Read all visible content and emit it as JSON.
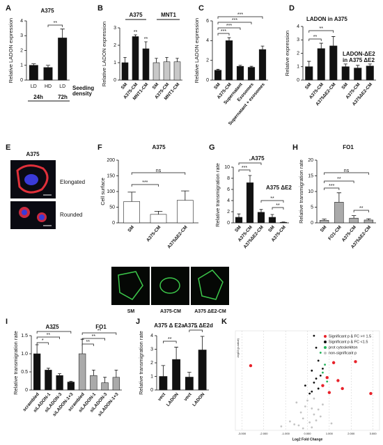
{
  "chart_data": [
    {
      "panel": "A",
      "type": "bar",
      "title": "A375",
      "ylabel": "Relative LADON expression",
      "categories": [
        "LD",
        "HD",
        "LD"
      ],
      "values": [
        1.0,
        0.85,
        2.85
      ],
      "errors": [
        0.1,
        0.15,
        0.6
      ],
      "colors": [
        "#111111",
        "#111111",
        "#111111"
      ],
      "ylim": [
        0,
        4
      ],
      "yticks": [
        0,
        1,
        2,
        3,
        4
      ],
      "annotations": [
        "**"
      ],
      "groups": [
        "24h",
        "72h",
        "Seeding",
        "density"
      ]
    },
    {
      "panel": "B",
      "type": "bar",
      "ylabel": "Relative LADON expression",
      "categories": [
        "SM",
        "A375-CM",
        "MNT1-CM",
        "SM",
        "A375-CM",
        "MNT1-CM"
      ],
      "values": [
        1.0,
        2.5,
        1.8,
        1.0,
        1.05,
        1.05
      ],
      "errors": [
        0.3,
        0.1,
        0.4,
        0.25,
        0.25,
        0.2
      ],
      "colors": [
        "#111111",
        "#111111",
        "#111111",
        "#c8c8c8",
        "#c8c8c8",
        "#c8c8c8"
      ],
      "ylim": [
        0,
        3
      ],
      "yticks": [
        0,
        1,
        2,
        3
      ],
      "annotations": [
        "**",
        "**"
      ],
      "groups": [
        "A375",
        "MNT1"
      ]
    },
    {
      "panel": "C",
      "type": "bar",
      "ylabel": "Relative LADON expression",
      "categories": [
        "SM",
        "A375-CM",
        "Supernatant",
        "Exosomes",
        "Supernatant + exosomes"
      ],
      "values": [
        1.0,
        4.0,
        1.4,
        1.3,
        3.1
      ],
      "errors": [
        0.1,
        0.3,
        0.1,
        0.1,
        0.35
      ],
      "colors": [
        "#111111",
        "#111111",
        "#111111",
        "#111111",
        "#111111"
      ],
      "ylim": [
        0,
        6
      ],
      "yticks": [
        0,
        2,
        4,
        6
      ],
      "annotations": [
        "***",
        "***",
        "***",
        "***"
      ],
      "groups": []
    },
    {
      "panel": "D",
      "type": "bar",
      "ylabel": "Relative expression",
      "categories": [
        "SM",
        "A375-CM",
        "A375ΔE2-CM",
        "SM",
        "A375-CM",
        "A375ΔE2-CM"
      ],
      "values": [
        1.0,
        2.35,
        2.55,
        1.0,
        0.9,
        1.05
      ],
      "errors": [
        0.4,
        0.4,
        0.7,
        0.2,
        0.2,
        0.15
      ],
      "colors": [
        "#111111",
        "#111111",
        "#111111",
        "#111111",
        "#111111",
        "#111111"
      ],
      "ylim": [
        0,
        4
      ],
      "yticks": [
        0,
        1,
        2,
        3,
        4
      ],
      "annotations": [
        "**",
        "**"
      ],
      "groups": [
        "LADON in A375",
        "LADON-ΔE2",
        "in A375 ΔE2"
      ]
    },
    {
      "panel": "F",
      "type": "bar",
      "title": "A375",
      "ylabel": "Cell surface",
      "categories": [
        "SM",
        "A375-CM",
        "A375ΔE2-CM"
      ],
      "values": [
        68,
        27,
        72
      ],
      "errors": [
        30,
        10,
        30
      ],
      "colors": [
        "#ffffff",
        "#ffffff",
        "#ffffff"
      ],
      "ylim": [
        0,
        200
      ],
      "yticks": [
        0,
        50,
        100,
        150,
        200
      ],
      "annotations": [
        "***",
        "ns"
      ],
      "groups": []
    },
    {
      "panel": "G",
      "type": "bar",
      "title": "A375",
      "ylabel": "Relative transmigration rate",
      "categories": [
        "SM",
        "A375-CM",
        "A375ΔE2-CM",
        "SM",
        "A375-CM"
      ],
      "values": [
        1.0,
        7.2,
        1.9,
        1.0,
        0.1
      ],
      "errors": [
        0.6,
        1.3,
        0.5,
        0.5,
        0.05
      ],
      "colors": [
        "#111111",
        "#111111",
        "#111111",
        "#111111",
        "#111111"
      ],
      "ylim": [
        0,
        10
      ],
      "yticks": [
        0,
        2,
        4,
        6,
        8,
        10
      ],
      "annotations": [
        "***",
        "*",
        "**",
        "**"
      ],
      "groups": [
        "A375 ΔE2"
      ]
    },
    {
      "panel": "H",
      "type": "bar",
      "title": "FO1",
      "ylabel": "Relative transmigration rate",
      "categories": [
        "SM",
        "FO1-CM",
        "A375-CM",
        "A375ΔE2-CM"
      ],
      "values": [
        0.8,
        6.6,
        1.5,
        0.9
      ],
      "errors": [
        0.4,
        3.0,
        0.8,
        0.4
      ],
      "colors": [
        "#aaaaaa",
        "#aaaaaa",
        "#aaaaaa",
        "#aaaaaa"
      ],
      "ylim": [
        0,
        20
      ],
      "yticks": [
        0,
        5,
        10,
        15,
        20
      ],
      "annotations": [
        "***",
        "**",
        "ns",
        "**"
      ],
      "groups": []
    },
    {
      "panel": "I",
      "type": "bar",
      "ylabel": "Relative transmigration rate",
      "categories": [
        "scrambled",
        "siLADON-1",
        "siLADON-3",
        "siLADON-1+3",
        "scrambled",
        "siLADON-1",
        "siLADON-3",
        "siLADON-1+3"
      ],
      "values": [
        1.0,
        0.55,
        0.4,
        0.22,
        1.0,
        0.4,
        0.2,
        0.35
      ],
      "errors": [
        0.25,
        0.05,
        0.05,
        0.02,
        0.4,
        0.15,
        0.15,
        0.2
      ],
      "colors": [
        "#111111",
        "#111111",
        "#111111",
        "#111111",
        "#aaaaaa",
        "#aaaaaa",
        "#aaaaaa",
        "#aaaaaa"
      ],
      "ylim": [
        0,
        1.5
      ],
      "yticks": [
        0,
        0.5,
        {
          "value": 1,
          "label": "1.0"
        },
        1.5
      ],
      "annotations": [
        "*",
        "**",
        "**",
        "**",
        "**",
        "**"
      ],
      "groups": [
        "A375",
        "FO1"
      ]
    },
    {
      "panel": "J",
      "type": "bar",
      "ylabel": "Relative transmigration rate",
      "categories": [
        "vect",
        "LADON",
        "vect",
        "LADON"
      ],
      "values": [
        1.0,
        2.25,
        0.95,
        2.95
      ],
      "errors": [
        0.8,
        0.9,
        0.35,
        1.0
      ],
      "colors": [
        "#111111",
        "#111111",
        "#111111",
        "#111111"
      ],
      "ylim": [
        0,
        4
      ],
      "yticks": [
        0,
        1,
        2,
        3,
        4
      ],
      "annotations": [
        "**",
        "**"
      ],
      "groups": [
        "A375 Δ E2a",
        "A375 ΔE2d"
      ]
    },
    {
      "panel": "K",
      "type": "scatter",
      "xlabel": "Log2 Fold Change",
      "ylabel": "-log10 (p-value)",
      "xlim": [
        -3.3,
        3.3
      ],
      "ylim": [
        0,
        10
      ],
      "grid": true,
      "xticks": [
        {
          "value": -3,
          "label": "-3.000"
        },
        {
          "value": -2,
          "label": "-2.000"
        },
        {
          "value": -1,
          "label": "-1.000"
        },
        {
          "value": 0,
          "label": "0.000"
        },
        {
          "value": 1,
          "label": "1.000"
        },
        {
          "value": 2,
          "label": "2.000"
        },
        {
          "value": 3,
          "label": "3.000"
        }
      ],
      "series": [
        {
          "name": "non-significant p",
          "color": "#c4c4c4",
          "x": [
            -0.4,
            -0.2,
            0.1,
            0.3,
            -0.6,
            0.5,
            -0.1,
            0.2,
            -0.3,
            0.4,
            0.7,
            -0.8,
            0.0,
            0.6,
            -0.5,
            0.2,
            -1.2,
            1.1,
            -0.2,
            0.3
          ],
          "values": [
            0.5,
            1.2,
            0.8,
            1.6,
            0.6,
            2.1,
            2.4,
            0.3,
            1.8,
            1.0,
            2.6,
            0.9,
            3.0,
            1.4,
            2.8,
            2.2,
            0.4,
            0.7,
            0.2,
            3.2
          ]
        },
        {
          "name": "Significant p & FC <1.5",
          "color": "#111111",
          "x": [
            0.3,
            0.4,
            0.5,
            0.2,
            0.6,
            0.3,
            0.5,
            0.1,
            0.7,
            0.4,
            -0.1,
            0.2
          ],
          "values": [
            9.5,
            8.3,
            7.0,
            6.0,
            5.5,
            4.8,
            4.2,
            3.7,
            6.2,
            5.2,
            4.5,
            3.9
          ]
        },
        {
          "name": "prot cytoskeleton",
          "color": "#22b35a",
          "x": [
            0.6,
            0.8,
            0.9,
            0.7
          ],
          "values": [
            7.8,
            6.6,
            4.9,
            5.8
          ]
        },
        {
          "name": "Significant p & FC >= 1.5",
          "color": "#e8222a",
          "x": [
            -2.6,
            2.9,
            1.2,
            1.6,
            0.9,
            0.7,
            1.0,
            1.4,
            2.2
          ],
          "values": [
            6.5,
            3.7,
            6.8,
            4.2,
            5.3,
            4.5,
            3.8,
            5.0,
            6.9
          ]
        }
      ]
    }
  ],
  "panel_e": {
    "panel": "E",
    "title": "A375",
    "labels": [
      "Elongated",
      "Rounded"
    ]
  },
  "panel_f_images": {
    "labels": [
      "SM",
      "A375-CM",
      "A375 ΔE2-CM"
    ]
  }
}
